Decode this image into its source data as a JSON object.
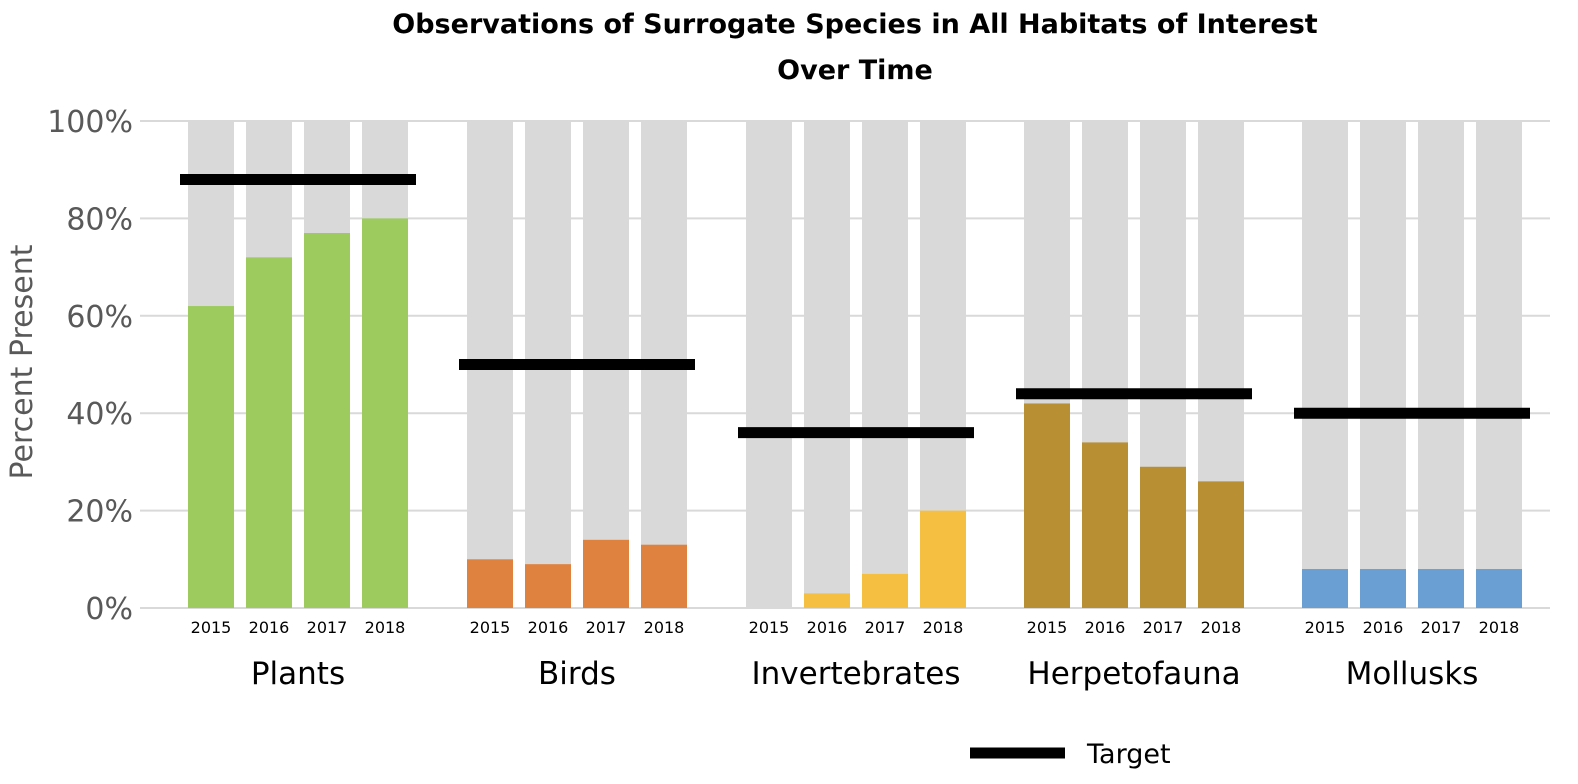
{
  "chart_data": {
    "type": "bar",
    "title": "Observations of Surrogate Species in All Habitats of Interest",
    "title_line2": "Over Time",
    "ylabel": "Percent Present",
    "xlabel": "",
    "ylim": [
      0,
      100
    ],
    "yticks": [
      "0%",
      "20%",
      "40%",
      "60%",
      "80%",
      "100%"
    ],
    "ytick_values": [
      0,
      20,
      40,
      60,
      80,
      100
    ],
    "grid": true,
    "background_bar_value": 100,
    "background_bar_color": "#d9d9d9",
    "years": [
      "2015",
      "2016",
      "2017",
      "2018"
    ],
    "groups": [
      {
        "name": "Plants",
        "color": "#9dcb5e",
        "values": [
          62,
          72,
          77,
          80
        ],
        "target": 88
      },
      {
        "name": "Birds",
        "color": "#e0823f",
        "values": [
          10,
          9,
          14,
          13
        ],
        "target": 50
      },
      {
        "name": "Invertebrates",
        "color": "#f5bf42",
        "values": [
          0,
          3,
          7,
          20
        ],
        "target": 36
      },
      {
        "name": "Herpetofauna",
        "color": "#b88f33",
        "values": [
          42,
          34,
          29,
          26
        ],
        "target": 44
      },
      {
        "name": "Mollusks",
        "color": "#6a9fd3",
        "values": [
          8,
          8,
          8,
          8
        ],
        "target": 40
      }
    ],
    "target_color": "#000000",
    "legend": {
      "position": "bottom-right",
      "label": "Target"
    }
  }
}
